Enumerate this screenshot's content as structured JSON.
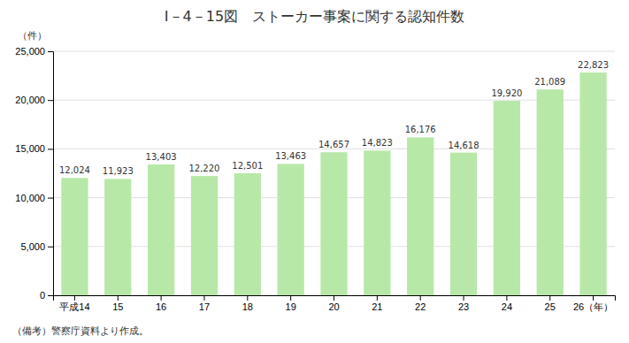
{
  "chart_data": {
    "type": "bar",
    "title": "I－4－15図　ストーカー事案に関する認知件数",
    "ylabel": "（件）",
    "annotations": [
      "（備考）警察庁資料より作成。"
    ],
    "categories": [
      "平成14",
      "15",
      "16",
      "17",
      "18",
      "19",
      "20",
      "21",
      "22",
      "23",
      "24",
      "25",
      "26（年）"
    ],
    "values": [
      12024,
      11923,
      13403,
      12220,
      12501,
      13463,
      14657,
      14823,
      16176,
      14618,
      19920,
      21089,
      22823
    ],
    "value_labels": [
      "12,024",
      "11,923",
      "13,403",
      "12,220",
      "12,501",
      "13,463",
      "14,657",
      "14,823",
      "16,176",
      "14,618",
      "19,920",
      "21,089",
      "22,823"
    ],
    "data_labels": true,
    "color": "#b8e8a8",
    "ylim": [
      0,
      25000
    ],
    "yticks": [
      0,
      {
        "value": 5000,
        "label": "5,000"
      },
      {
        "value": 10000,
        "label": "10,000"
      },
      {
        "value": 15000,
        "label": "15,000"
      },
      {
        "value": 20000,
        "label": "20,000"
      },
      {
        "value": 25000,
        "label": "25,000"
      }
    ],
    "grid": true
  }
}
